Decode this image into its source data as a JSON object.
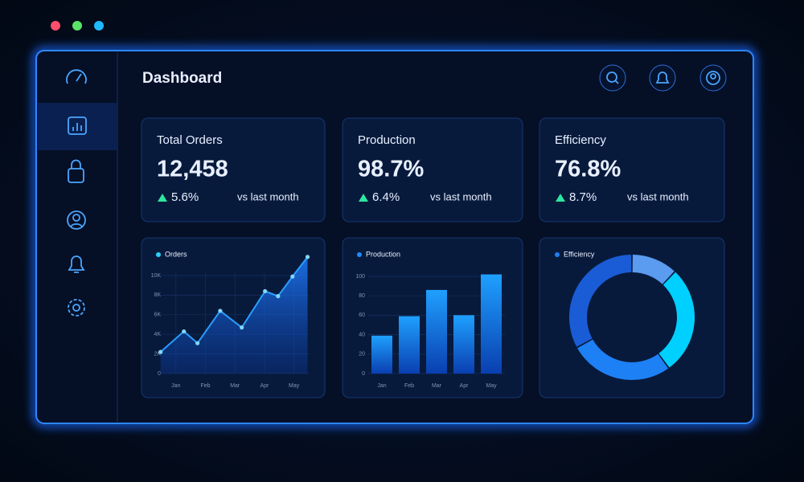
{
  "header": {
    "title": "Dashboard"
  },
  "kpis": [
    {
      "label": "Total Orders",
      "value": "12,458",
      "change": "5.6%",
      "note": "vs last month"
    },
    {
      "label": "Production",
      "value": "98.7%",
      "change": "6.4%",
      "note": "vs last month"
    },
    {
      "label": "Efficiency",
      "value": "76.8%",
      "change": "8.7%",
      "note": "vs last month"
    }
  ],
  "chart_data": [
    {
      "type": "line",
      "x": [
        0.48,
        1.27,
        1.73,
        2.5,
        3.23,
        4.02,
        4.46,
        4.95,
        5.46
      ],
      "series": [
        {
          "name": "Orders",
          "color": "#2a9dff",
          "values": [
            2200,
            4300,
            3100,
            6400,
            4700,
            8400,
            7900,
            9900,
            11900
          ]
        }
      ],
      "xlim": [
        0.46,
        5.5
      ],
      "xticks": [
        {
          "value": 1,
          "label": "Jan"
        },
        {
          "value": 2,
          "label": "Feb"
        },
        {
          "value": 3,
          "label": "Mar"
        },
        {
          "value": 4,
          "label": "Apr"
        },
        {
          "value": 5,
          "label": "May"
        }
      ],
      "ylim": [
        0,
        12000
      ],
      "yticks": [
        0,
        {
          "value": 2000,
          "label": "2K"
        },
        {
          "value": 4000,
          "label": "4K"
        },
        {
          "value": 6000,
          "label": "6K"
        },
        {
          "value": 8000,
          "label": "8K"
        },
        {
          "value": 10000,
          "label": "10K"
        }
      ],
      "grid": true
    },
    {
      "type": "bar",
      "categories": [
        "Jan",
        "Feb",
        "Mar",
        "Apr",
        "May"
      ],
      "series": [
        {
          "name": "Production",
          "color": "#1e8cff",
          "values": [
            39,
            59,
            86,
            60,
            102
          ]
        }
      ],
      "ylim": [
        0,
        105
      ],
      "yticks": [
        0,
        20,
        40,
        60,
        80,
        100
      ],
      "grid": true
    },
    {
      "type": "pie",
      "series": [
        {
          "name": "Efficiency",
          "color": "#1e7ff0",
          "values": [
            12,
            28,
            27,
            33
          ]
        }
      ],
      "colors": [
        "#5b9bf0",
        "#00d0ff",
        "#1e80f5",
        "#1a5cd6"
      ]
    }
  ]
}
